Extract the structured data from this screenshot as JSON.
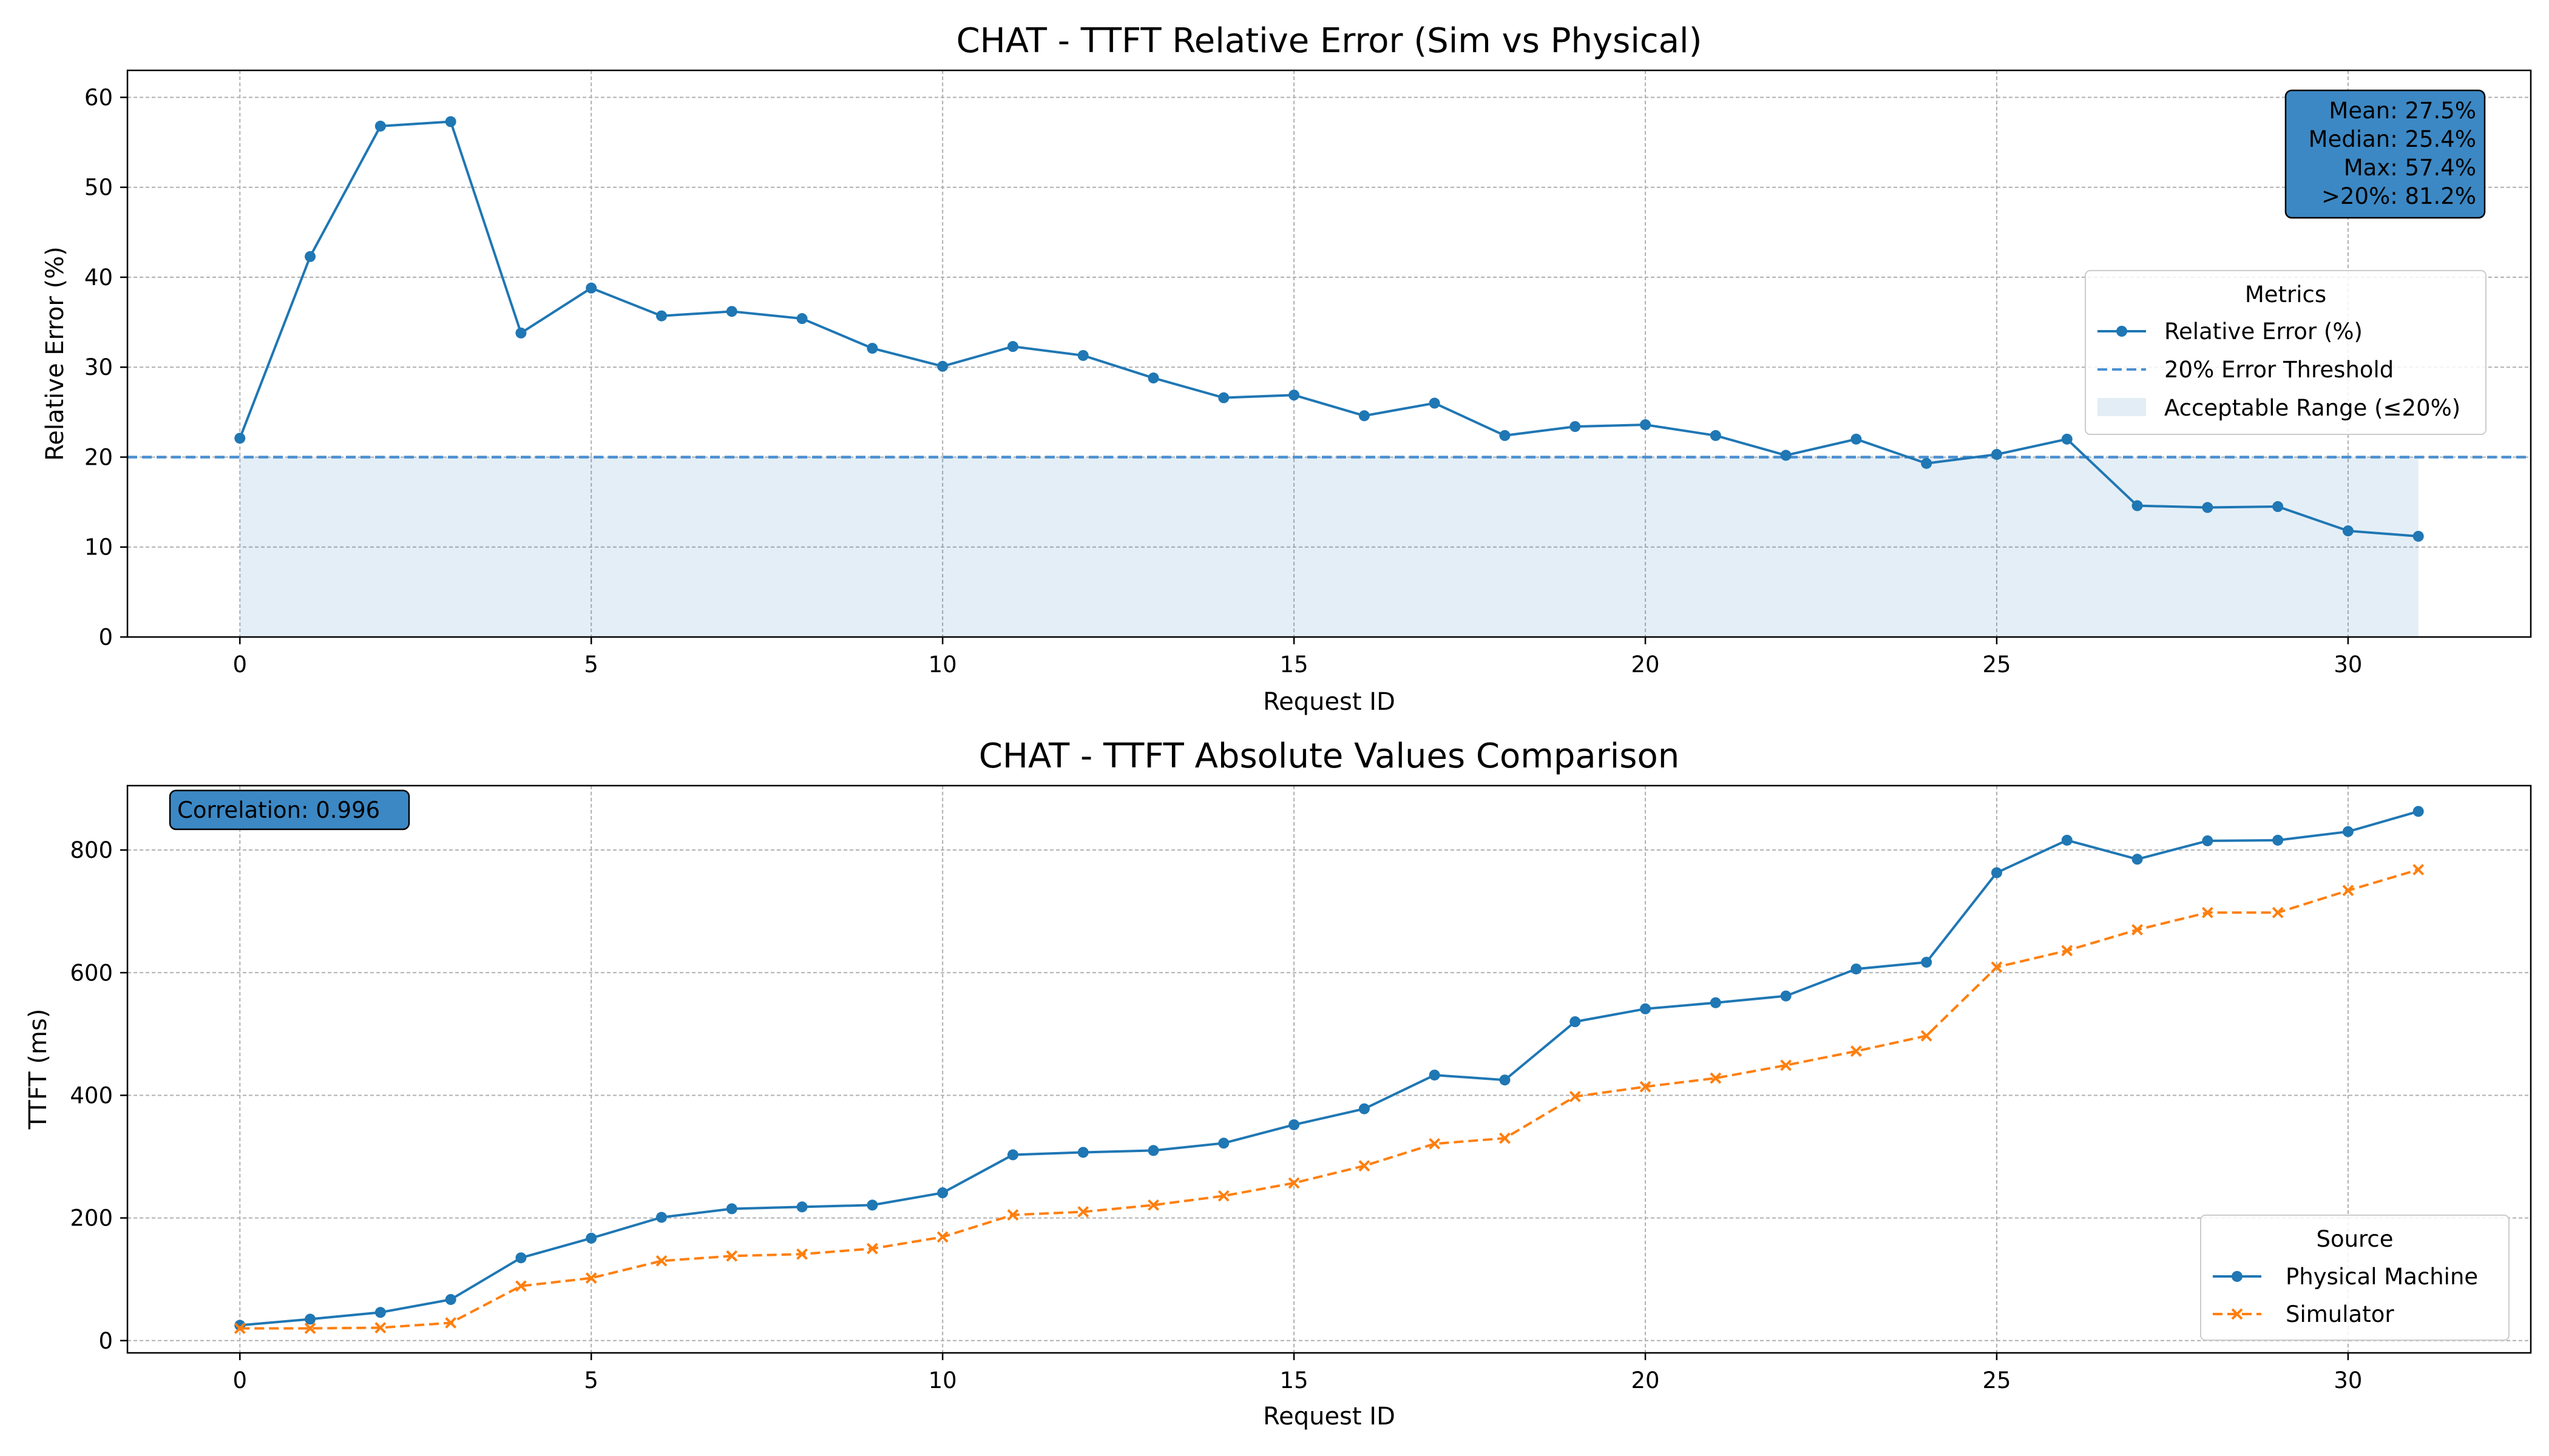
{
  "colors": {
    "blue": "#1f77b4",
    "orange": "#ff7f0e",
    "threshold": "#4a8fd0",
    "band": "#1f77b4",
    "stats_box": "#3c88c4"
  },
  "chart_data": [
    {
      "type": "line",
      "title": "CHAT - TTFT Relative Error (Sim vs Physical)",
      "xlabel": "Request ID",
      "ylabel": "Relative Error (%)",
      "xlim": [
        -1.6,
        32.6
      ],
      "ylim": [
        0,
        63
      ],
      "xticks": [
        0,
        5,
        10,
        15,
        20,
        25,
        30
      ],
      "yticks": [
        0,
        10,
        20,
        30,
        40,
        50,
        60
      ],
      "grid": true,
      "x": [
        0,
        1,
        2,
        3,
        4,
        5,
        6,
        7,
        8,
        9,
        10,
        11,
        12,
        13,
        14,
        15,
        16,
        17,
        18,
        19,
        20,
        21,
        22,
        23,
        24,
        25,
        26,
        27,
        28,
        29,
        30,
        31
      ],
      "series": [
        {
          "name": "Relative Error (%)",
          "marker": "circle",
          "values": [
            22.1,
            42.3,
            56.8,
            57.3,
            33.8,
            38.8,
            35.7,
            36.2,
            35.4,
            32.1,
            30.1,
            32.3,
            31.3,
            28.8,
            26.6,
            26.9,
            24.6,
            26.0,
            22.4,
            23.4,
            23.6,
            22.4,
            20.2,
            22.0,
            19.3,
            20.3,
            22.0,
            14.6,
            14.4,
            14.5,
            11.8,
            11.2
          ]
        }
      ],
      "threshold": {
        "name": "20% Error Threshold",
        "value": 20
      },
      "band": {
        "name": "Acceptable Range (≤20%)",
        "from": 0,
        "to": 20
      },
      "legend": {
        "title": "Metrics",
        "placement": "center-right"
      },
      "stats": [
        "Mean: 27.5%",
        "Median: 25.4%",
        "Max: 57.4%",
        ">20%: 81.2%"
      ]
    },
    {
      "type": "line",
      "title": "CHAT - TTFT Absolute Values Comparison",
      "xlabel": "Request ID",
      "ylabel": "TTFT (ms)",
      "xlim": [
        -1.6,
        32.6
      ],
      "ylim": [
        -20,
        905
      ],
      "xticks": [
        0,
        5,
        10,
        15,
        20,
        25,
        30
      ],
      "yticks": [
        0,
        200,
        400,
        600,
        800
      ],
      "grid": true,
      "x": [
        0,
        1,
        2,
        3,
        4,
        5,
        6,
        7,
        8,
        9,
        10,
        11,
        12,
        13,
        14,
        15,
        16,
        17,
        18,
        19,
        20,
        21,
        22,
        23,
        24,
        25,
        26,
        27,
        28,
        29,
        30,
        31
      ],
      "series": [
        {
          "name": "Physical Machine",
          "marker": "circle",
          "values": [
            25,
            35,
            46,
            67,
            135,
            167,
            201,
            215,
            218,
            221,
            241,
            303,
            307,
            310,
            322,
            352,
            378,
            433,
            425,
            520,
            541,
            551,
            562,
            606,
            617,
            763,
            816,
            785,
            815,
            816,
            830,
            863
          ]
        },
        {
          "name": "Simulator",
          "marker": "x",
          "values": [
            20,
            20,
            21,
            29,
            89,
            102,
            130,
            138,
            141,
            150,
            169,
            205,
            210,
            221,
            236,
            257,
            285,
            321,
            330,
            398,
            414,
            428,
            449,
            472,
            497,
            609,
            636,
            670,
            698,
            698,
            734,
            768
          ]
        }
      ],
      "legend": {
        "title": "Source",
        "placement": "lower right"
      },
      "stats": [
        "Correlation: 0.996"
      ]
    }
  ]
}
